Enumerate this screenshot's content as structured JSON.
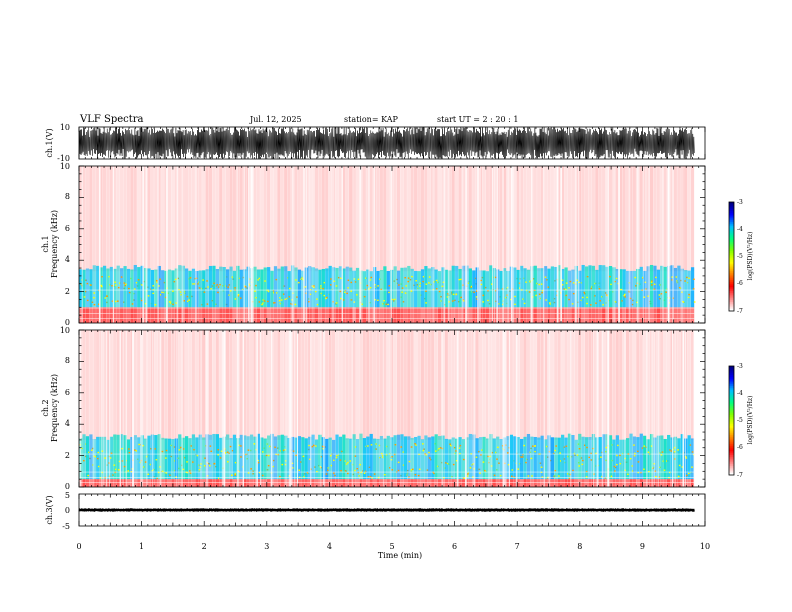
{
  "header": {
    "title": "VLF Spectra",
    "date": "Jul. 12, 2025",
    "station": "station= KAP",
    "start": "start UT =   2 : 20 : 1"
  },
  "chart_data": [
    {
      "type": "line",
      "panel": "ch1-waveform",
      "ylabel": "ch.1(V)",
      "ylim": [
        -10,
        10
      ],
      "ytick_labels": [
        "10",
        "-10"
      ],
      "xlim": [
        0,
        10
      ],
      "data_end_min": 9.83
    },
    {
      "type": "heatmap",
      "panel": "ch1-spectrogram",
      "ylabel_line1": "ch.1",
      "ylabel_line2": "Frequency (kHz)",
      "ylim": [
        0,
        10
      ],
      "ytick_labels": [
        "0",
        "2",
        "4",
        "6",
        "8",
        "10"
      ],
      "xlim": [
        0,
        10
      ],
      "data_end_min": 9.83,
      "intense_band_khz": [
        1.0,
        3.3
      ],
      "peak_band_khz": [
        1.2,
        3.0
      ]
    },
    {
      "type": "heatmap",
      "panel": "ch2-spectrogram",
      "ylabel_line1": "ch.2",
      "ylabel_line2": "Frequency (kHz)",
      "ylim": [
        0,
        10
      ],
      "ytick_labels": [
        "0",
        "2",
        "4",
        "6",
        "8",
        "10"
      ],
      "xlim": [
        0,
        10
      ],
      "data_end_min": 9.83,
      "intense_band_khz": [
        0.5,
        3.0
      ],
      "peak_band_khz": [
        0.6,
        2.8
      ]
    },
    {
      "type": "line",
      "panel": "ch3-waveform",
      "ylabel": "ch.3(V)",
      "ylim": [
        -5,
        5
      ],
      "ytick_labels": [
        "5",
        "0",
        "-5"
      ],
      "xlim": [
        0,
        10
      ],
      "data_end_min": 9.83,
      "xlabel": "Time (min)",
      "xtick_labels": [
        "0",
        "1",
        "2",
        "3",
        "4",
        "5",
        "6",
        "7",
        "8",
        "9",
        "10"
      ]
    }
  ],
  "colorbar": {
    "label": "log(PSD)(V²/Hz)",
    "tick_labels": [
      "-3",
      "-4",
      "-5",
      "-6",
      "-7"
    ],
    "range": [
      -7,
      -3
    ],
    "colors": [
      "#000080",
      "#0000ff",
      "#00c0ff",
      "#00ff80",
      "#80ff00",
      "#ffff00",
      "#ff8000",
      "#ff0000",
      "#ff8080",
      "#ffffff"
    ]
  }
}
